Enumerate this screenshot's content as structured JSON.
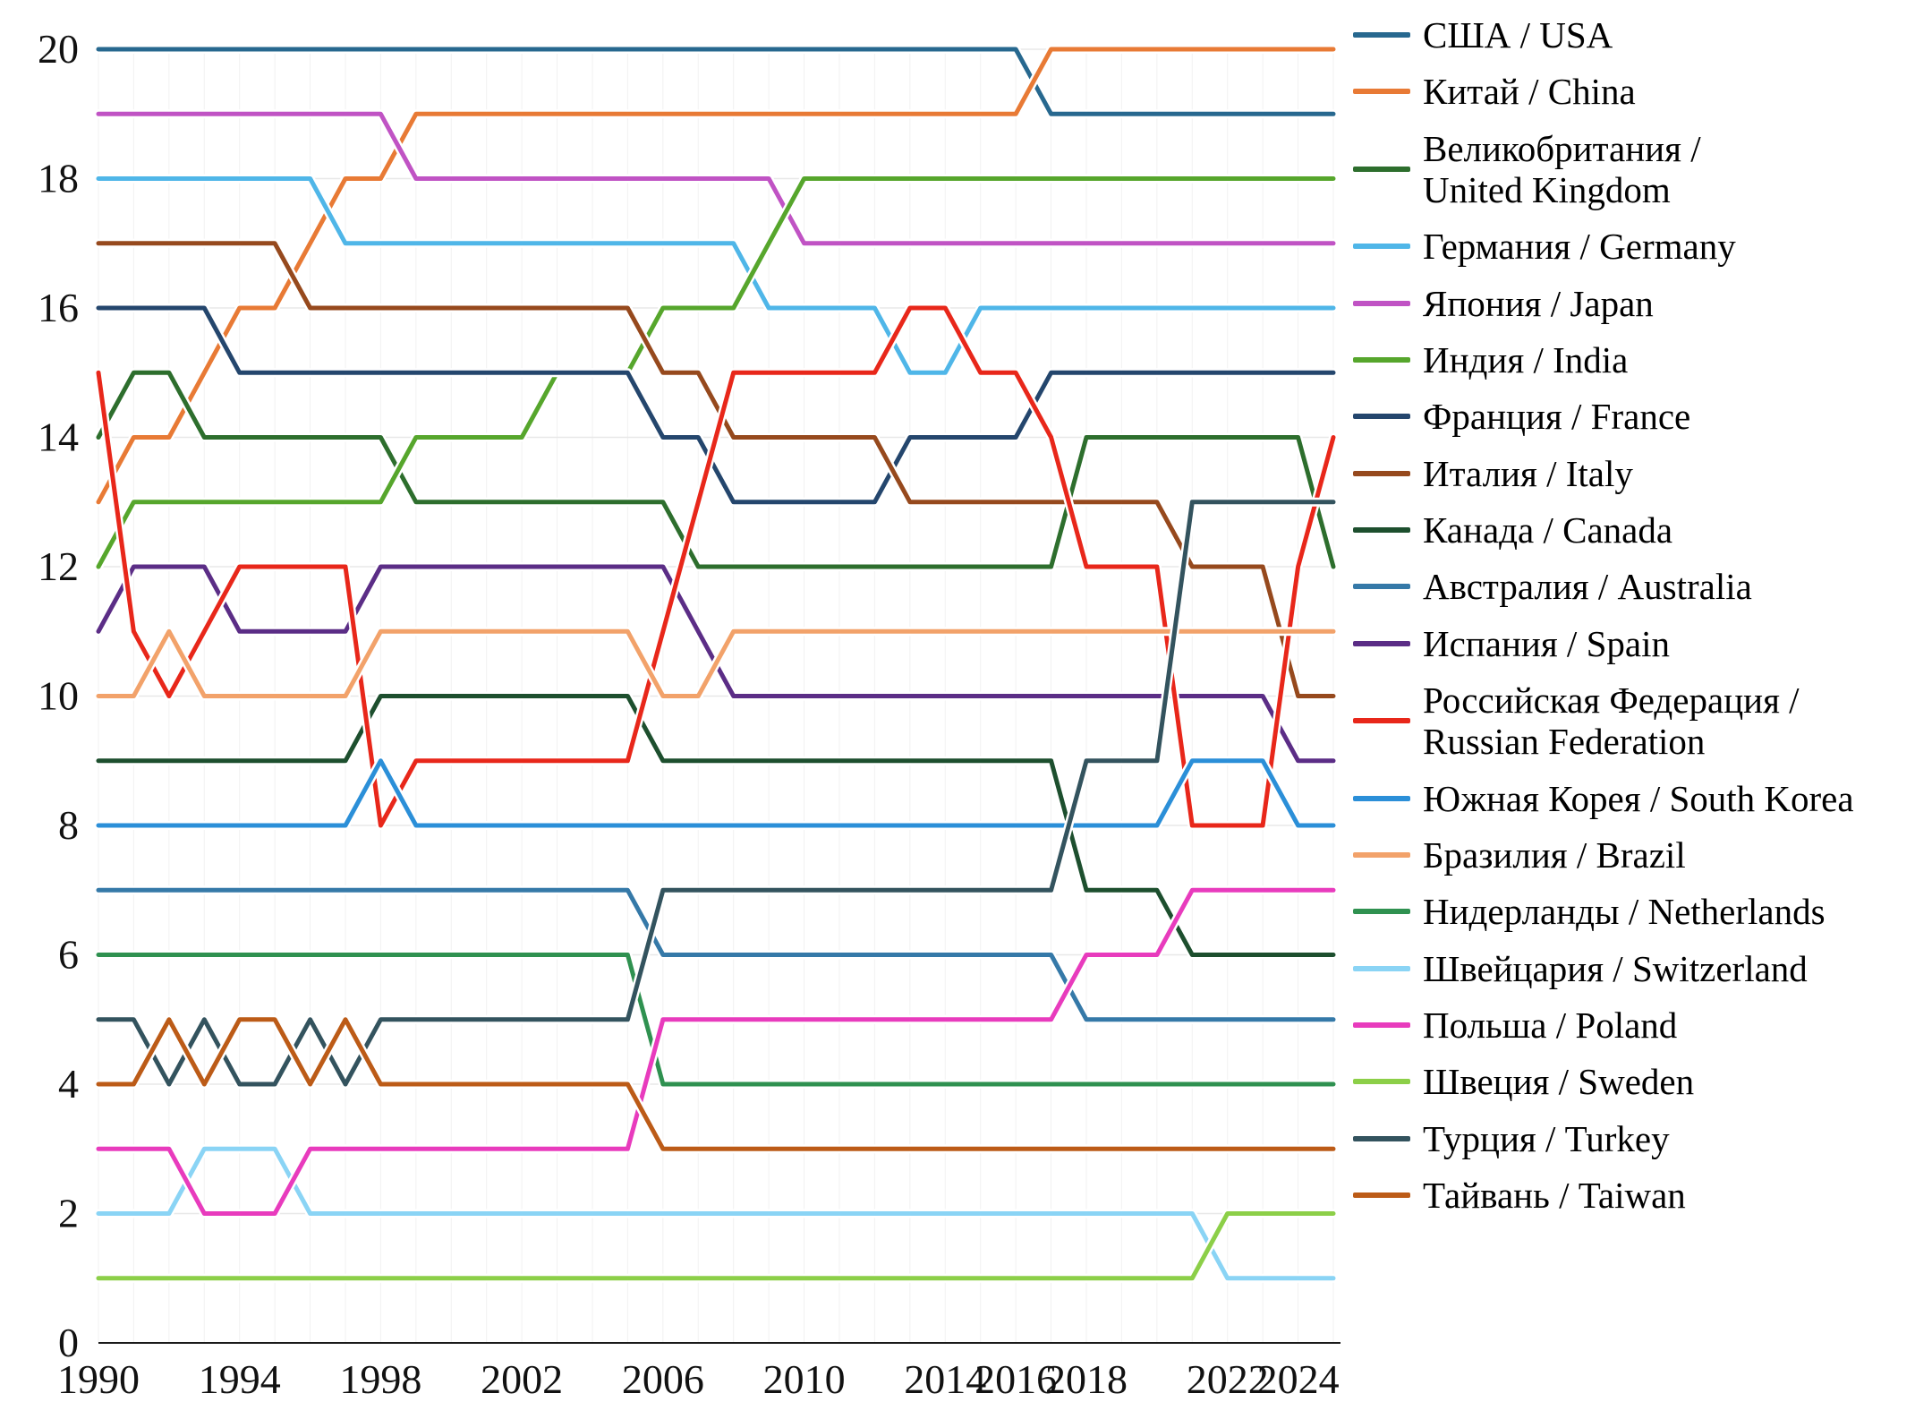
{
  "chart_data": {
    "type": "line",
    "subtype": "bump-rank-chart",
    "title": "",
    "xlabel": "",
    "ylabel": "",
    "grid": true,
    "legend_position": "right",
    "y_axis": {
      "min": 0,
      "max": 20,
      "tick_step": 2,
      "tick_labels": [
        "0",
        "2",
        "4",
        "6",
        "8",
        "10",
        "12",
        "14",
        "16",
        "18",
        "20"
      ]
    },
    "x_axis": {
      "tick_labels": [
        "1990",
        "1994",
        "1998",
        "2002",
        "2006",
        "2010",
        "2014",
        "2016",
        "2018",
        "2022",
        "2024"
      ]
    },
    "years": [
      1990,
      1991,
      1992,
      1993,
      1994,
      1995,
      1996,
      1997,
      1998,
      1999,
      2000,
      2001,
      2002,
      2003,
      2004,
      2005,
      2006,
      2007,
      2008,
      2009,
      2010,
      2011,
      2012,
      2013,
      2014,
      2015,
      2016,
      2017,
      2018,
      2019,
      2020,
      2021,
      2022,
      2023,
      2024,
      2025
    ],
    "value_meaning": "position on 0-20 scale, 20 = top rank",
    "series": [
      {
        "id": "usa",
        "legend_lines": [
          "США / USA"
        ],
        "color": "#27688f",
        "values": [
          20,
          20,
          20,
          20,
          20,
          20,
          20,
          20,
          20,
          20,
          20,
          20,
          20,
          20,
          20,
          20,
          20,
          20,
          20,
          20,
          20,
          20,
          20,
          20,
          20,
          20,
          20,
          19,
          19,
          19,
          19,
          19,
          19,
          19,
          19,
          19
        ]
      },
      {
        "id": "china",
        "legend_lines": [
          "Китай / China"
        ],
        "color": "#e87a35",
        "values": [
          13,
          14,
          14,
          15,
          16,
          16,
          17,
          18,
          18,
          19,
          19,
          19,
          19,
          19,
          19,
          19,
          19,
          19,
          19,
          19,
          19,
          19,
          19,
          19,
          19,
          19,
          19,
          20,
          20,
          20,
          20,
          20,
          20,
          20,
          20,
          20
        ]
      },
      {
        "id": "united-kingdom",
        "legend_lines": [
          "Великобритания /",
          "United Kingdom"
        ],
        "color": "#2d6e2d",
        "values": [
          14,
          15,
          15,
          14,
          14,
          14,
          14,
          14,
          14,
          13,
          13,
          13,
          13,
          13,
          13,
          13,
          13,
          12,
          12,
          12,
          12,
          12,
          12,
          12,
          12,
          12,
          12,
          12,
          14,
          14,
          14,
          14,
          14,
          14,
          14,
          12
        ]
      },
      {
        "id": "germany",
        "legend_lines": [
          "Германия / Germany"
        ],
        "color": "#4fb6e8",
        "values": [
          18,
          18,
          18,
          18,
          18,
          18,
          18,
          17,
          17,
          17,
          17,
          17,
          17,
          17,
          17,
          17,
          17,
          17,
          17,
          16,
          16,
          16,
          16,
          15,
          15,
          16,
          16,
          16,
          16,
          16,
          16,
          16,
          16,
          16,
          16,
          16
        ]
      },
      {
        "id": "japan",
        "legend_lines": [
          "Япония / Japan"
        ],
        "color": "#c053c4",
        "values": [
          19,
          19,
          19,
          19,
          19,
          19,
          19,
          19,
          19,
          18,
          18,
          18,
          18,
          18,
          18,
          18,
          18,
          18,
          18,
          18,
          17,
          17,
          17,
          17,
          17,
          17,
          17,
          17,
          17,
          17,
          17,
          17,
          17,
          17,
          17,
          17
        ]
      },
      {
        "id": "india",
        "legend_lines": [
          "Индия / India"
        ],
        "color": "#56a62c",
        "values": [
          12,
          13,
          13,
          13,
          13,
          13,
          13,
          13,
          13,
          14,
          14,
          14,
          14,
          15,
          15,
          15,
          16,
          16,
          16,
          17,
          18,
          18,
          18,
          18,
          18,
          18,
          18,
          18,
          18,
          18,
          18,
          18,
          18,
          18,
          18,
          18
        ]
      },
      {
        "id": "france",
        "legend_lines": [
          "Франция / France"
        ],
        "color": "#24466d",
        "values": [
          16,
          16,
          16,
          16,
          15,
          15,
          15,
          15,
          15,
          15,
          15,
          15,
          15,
          15,
          15,
          15,
          14,
          14,
          13,
          13,
          13,
          13,
          13,
          14,
          14,
          14,
          14,
          15,
          15,
          15,
          15,
          15,
          15,
          15,
          15,
          15
        ]
      },
      {
        "id": "italy",
        "legend_lines": [
          "Италия / Italy"
        ],
        "color": "#96491d",
        "values": [
          17,
          17,
          17,
          17,
          17,
          17,
          16,
          16,
          16,
          16,
          16,
          16,
          16,
          16,
          16,
          16,
          15,
          15,
          14,
          14,
          14,
          14,
          14,
          13,
          13,
          13,
          13,
          13,
          13,
          13,
          13,
          12,
          12,
          12,
          10,
          10
        ]
      },
      {
        "id": "canada",
        "legend_lines": [
          "Канада / Canada"
        ],
        "color": "#1d4f2e",
        "values": [
          9,
          9,
          9,
          9,
          9,
          9,
          9,
          9,
          10,
          10,
          10,
          10,
          10,
          10,
          10,
          10,
          9,
          9,
          9,
          9,
          9,
          9,
          9,
          9,
          9,
          9,
          9,
          9,
          7,
          7,
          7,
          6,
          6,
          6,
          6,
          6
        ]
      },
      {
        "id": "australia",
        "legend_lines": [
          "Австралия / Australia"
        ],
        "color": "#3579a8",
        "values": [
          7,
          7,
          7,
          7,
          7,
          7,
          7,
          7,
          7,
          7,
          7,
          7,
          7,
          7,
          7,
          7,
          6,
          6,
          6,
          6,
          6,
          6,
          6,
          6,
          6,
          6,
          6,
          6,
          5,
          5,
          5,
          5,
          5,
          5,
          5,
          5
        ]
      },
      {
        "id": "spain",
        "legend_lines": [
          "Испания / Spain"
        ],
        "color": "#5b2d86",
        "values": [
          11,
          12,
          12,
          12,
          11,
          11,
          11,
          11,
          12,
          12,
          12,
          12,
          12,
          12,
          12,
          12,
          12,
          11,
          10,
          10,
          10,
          10,
          10,
          10,
          10,
          10,
          10,
          10,
          10,
          10,
          10,
          10,
          10,
          10,
          9,
          9
        ]
      },
      {
        "id": "russia",
        "legend_lines": [
          "Российская Федерация /",
          "Russian Federation"
        ],
        "color": "#e8271a",
        "values": [
          15,
          11,
          10,
          11,
          12,
          12,
          12,
          12,
          8,
          9,
          9,
          9,
          9,
          9,
          9,
          9,
          11,
          13,
          15,
          15,
          15,
          15,
          15,
          16,
          16,
          15,
          15,
          14,
          12,
          12,
          12,
          8,
          8,
          8,
          12,
          14
        ]
      },
      {
        "id": "south-korea",
        "legend_lines": [
          "Южная Корея / South Korea"
        ],
        "color": "#2b8fd8",
        "values": [
          8,
          8,
          8,
          8,
          8,
          8,
          8,
          8,
          9,
          8,
          8,
          8,
          8,
          8,
          8,
          8,
          8,
          8,
          8,
          8,
          8,
          8,
          8,
          8,
          8,
          8,
          8,
          8,
          8,
          8,
          8,
          9,
          9,
          9,
          8,
          8
        ]
      },
      {
        "id": "brazil",
        "legend_lines": [
          "Бразилия / Brazil"
        ],
        "color": "#f2a26a",
        "values": [
          10,
          10,
          11,
          10,
          10,
          10,
          10,
          10,
          11,
          11,
          11,
          11,
          11,
          11,
          11,
          11,
          10,
          10,
          11,
          11,
          11,
          11,
          11,
          11,
          11,
          11,
          11,
          11,
          11,
          11,
          11,
          11,
          11,
          11,
          11,
          11
        ]
      },
      {
        "id": "netherlands",
        "legend_lines": [
          "Нидерланды / Netherlands"
        ],
        "color": "#2f9150",
        "values": [
          6,
          6,
          6,
          6,
          6,
          6,
          6,
          6,
          6,
          6,
          6,
          6,
          6,
          6,
          6,
          6,
          4,
          4,
          4,
          4,
          4,
          4,
          4,
          4,
          4,
          4,
          4,
          4,
          4,
          4,
          4,
          4,
          4,
          4,
          4,
          4
        ]
      },
      {
        "id": "switzerland",
        "legend_lines": [
          "Швейцария / Switzerland"
        ],
        "color": "#8ad4f5",
        "values": [
          2,
          2,
          2,
          3,
          3,
          3,
          2,
          2,
          2,
          2,
          2,
          2,
          2,
          2,
          2,
          2,
          2,
          2,
          2,
          2,
          2,
          2,
          2,
          2,
          2,
          2,
          2,
          2,
          2,
          2,
          2,
          2,
          1,
          1,
          1,
          1
        ]
      },
      {
        "id": "poland",
        "legend_lines": [
          "Польша / Poland"
        ],
        "color": "#e83bbd",
        "values": [
          3,
          3,
          3,
          2,
          2,
          2,
          3,
          3,
          3,
          3,
          3,
          3,
          3,
          3,
          3,
          3,
          5,
          5,
          5,
          5,
          5,
          5,
          5,
          5,
          5,
          5,
          5,
          5,
          6,
          6,
          6,
          7,
          7,
          7,
          7,
          7
        ]
      },
      {
        "id": "sweden",
        "legend_lines": [
          "Швеция / Sweden"
        ],
        "color": "#8ccf48",
        "values": [
          1,
          1,
          1,
          1,
          1,
          1,
          1,
          1,
          1,
          1,
          1,
          1,
          1,
          1,
          1,
          1,
          1,
          1,
          1,
          1,
          1,
          1,
          1,
          1,
          1,
          1,
          1,
          1,
          1,
          1,
          1,
          1,
          2,
          2,
          2,
          2
        ]
      },
      {
        "id": "turkey",
        "legend_lines": [
          "Турция / Turkey"
        ],
        "color": "#33535e",
        "values": [
          5,
          5,
          4,
          5,
          4,
          4,
          5,
          4,
          5,
          5,
          5,
          5,
          5,
          5,
          5,
          5,
          7,
          7,
          7,
          7,
          7,
          7,
          7,
          7,
          7,
          7,
          7,
          7,
          9,
          9,
          9,
          13,
          13,
          13,
          13,
          13
        ]
      },
      {
        "id": "taiwan",
        "legend_lines": [
          "Тайвань / Taiwan"
        ],
        "color": "#bc5b17",
        "values": [
          4,
          4,
          5,
          4,
          5,
          5,
          4,
          5,
          4,
          4,
          4,
          4,
          4,
          4,
          4,
          4,
          3,
          3,
          3,
          3,
          3,
          3,
          3,
          3,
          3,
          3,
          3,
          3,
          3,
          3,
          3,
          3,
          3,
          3,
          3,
          3
        ]
      }
    ]
  }
}
